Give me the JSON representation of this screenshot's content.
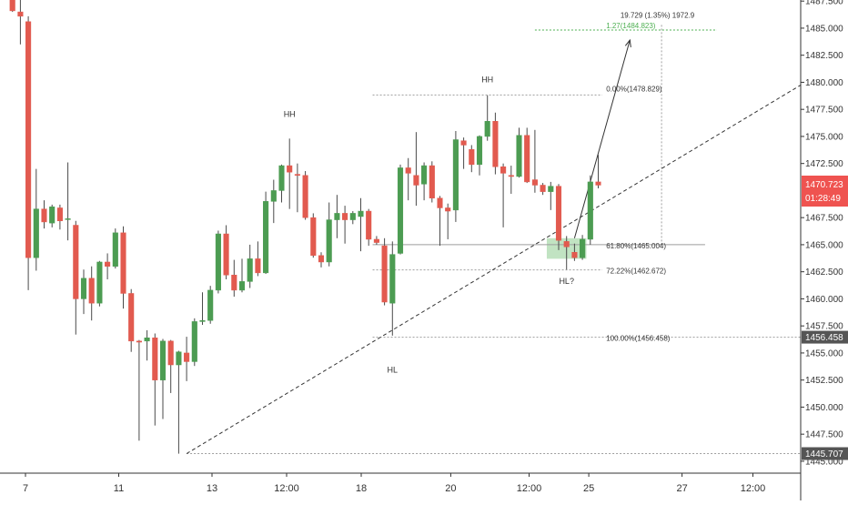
{
  "chart_data": {
    "type": "candlestick",
    "instrument_price_label": "1470.723",
    "countdown_label": "01:28:49",
    "colors": {
      "up": "#4c9c52",
      "down": "#e25a4f",
      "wick": "#4a4a4a",
      "price_tag": "#ef5350",
      "level_tag": "#555555",
      "target": "#4caf50",
      "entry_zone": "rgba(76,175,80,0.35)"
    },
    "y_axis": {
      "range": [
        1443.9,
        1487.6
      ],
      "ticks": [
        "1485.000",
        "1482.500",
        "1480.000",
        "1477.500",
        "1475.000",
        "1472.500",
        "1467.500",
        "1465.000",
        "1462.500",
        "1460.000",
        "1457.500",
        "1455.000",
        "1452.500",
        "1450.000",
        "1447.500",
        "1445.000",
        "1487.500"
      ],
      "tick_values": [
        1485.0,
        1482.5,
        1480.0,
        1477.5,
        1475.0,
        1472.5,
        1467.5,
        1465.0,
        1462.5,
        1460.0,
        1457.5,
        1455.0,
        1452.5,
        1450.0,
        1447.5,
        1445.0,
        1487.5
      ]
    },
    "x_axis": {
      "range": [
        0,
        100
      ],
      "ticks": [
        "7",
        "11",
        "13",
        "12:00",
        "18",
        "20",
        "12:00",
        "25",
        "27",
        "12:00"
      ],
      "tick_positions": [
        0,
        12.5,
        25,
        35,
        45,
        57,
        67.5,
        75.5,
        88,
        97.5
      ]
    },
    "candles": [
      {
        "x": 1,
        "o": 1487.8,
        "h": 1488.0,
        "l": 1486.5,
        "c": 1486.6
      },
      {
        "x": 2,
        "o": 1486.5,
        "h": 1487.6,
        "l": 1483.5,
        "c": 1486.1
      },
      {
        "x": 3,
        "o": 1485.6,
        "h": 1486.1,
        "l": 1460.8,
        "c": 1463.8
      },
      {
        "x": 4,
        "o": 1463.8,
        "h": 1472.0,
        "l": 1462.6,
        "c": 1468.3
      },
      {
        "x": 5,
        "o": 1468.3,
        "h": 1469.1,
        "l": 1466.5,
        "c": 1467.1
      },
      {
        "x": 6,
        "o": 1467.0,
        "h": 1468.7,
        "l": 1466.6,
        "c": 1468.5
      },
      {
        "x": 7,
        "o": 1468.4,
        "h": 1468.7,
        "l": 1466.4,
        "c": 1467.2
      },
      {
        "x": 8,
        "o": 1467.4,
        "h": 1472.6,
        "l": 1465.4,
        "c": 1467.4
      },
      {
        "x": 9,
        "o": 1466.8,
        "h": 1467.2,
        "l": 1456.7,
        "c": 1460.0
      },
      {
        "x": 10,
        "o": 1460.0,
        "h": 1462.7,
        "l": 1458.6,
        "c": 1461.9
      },
      {
        "x": 11,
        "o": 1461.9,
        "h": 1463.0,
        "l": 1458.0,
        "c": 1459.6
      },
      {
        "x": 12,
        "o": 1459.6,
        "h": 1463.5,
        "l": 1459.3,
        "c": 1463.4
      },
      {
        "x": 13,
        "o": 1463.4,
        "h": 1464.2,
        "l": 1461.8,
        "c": 1463.0
      },
      {
        "x": 14,
        "o": 1463.0,
        "h": 1466.5,
        "l": 1462.8,
        "c": 1466.1
      },
      {
        "x": 15,
        "o": 1466.1,
        "h": 1466.7,
        "l": 1459.1,
        "c": 1460.5
      },
      {
        "x": 16,
        "o": 1460.5,
        "h": 1460.9,
        "l": 1455.1,
        "c": 1456.1
      },
      {
        "x": 17,
        "o": 1456.1,
        "h": 1456.2,
        "l": 1446.9,
        "c": 1456.0
      },
      {
        "x": 18,
        "o": 1456.1,
        "h": 1457.1,
        "l": 1454.3,
        "c": 1456.4
      },
      {
        "x": 19,
        "o": 1456.4,
        "h": 1456.8,
        "l": 1448.3,
        "c": 1452.5
      },
      {
        "x": 20,
        "o": 1452.5,
        "h": 1456.3,
        "l": 1448.9,
        "c": 1456.1
      },
      {
        "x": 21,
        "o": 1456.1,
        "h": 1456.2,
        "l": 1451.3,
        "c": 1453.9
      },
      {
        "x": 22,
        "o": 1453.9,
        "h": 1455.2,
        "l": 1445.7,
        "c": 1455.1
      },
      {
        "x": 23,
        "o": 1455.0,
        "h": 1456.5,
        "l": 1452.4,
        "c": 1454.2
      },
      {
        "x": 24,
        "o": 1454.2,
        "h": 1458.2,
        "l": 1453.8,
        "c": 1457.9
      },
      {
        "x": 25,
        "o": 1457.9,
        "h": 1460.6,
        "l": 1457.6,
        "c": 1458.0
      },
      {
        "x": 26,
        "o": 1458.0,
        "h": 1461.2,
        "l": 1457.7,
        "c": 1460.8
      },
      {
        "x": 27,
        "o": 1460.8,
        "h": 1466.3,
        "l": 1460.5,
        "c": 1466.0
      },
      {
        "x": 28,
        "o": 1466.0,
        "h": 1466.8,
        "l": 1461.8,
        "c": 1462.2
      },
      {
        "x": 29,
        "o": 1462.2,
        "h": 1463.6,
        "l": 1460.2,
        "c": 1460.8
      },
      {
        "x": 30,
        "o": 1460.8,
        "h": 1463.7,
        "l": 1460.6,
        "c": 1461.6
      },
      {
        "x": 31,
        "o": 1461.6,
        "h": 1465.0,
        "l": 1461.0,
        "c": 1463.7
      },
      {
        "x": 32,
        "o": 1463.7,
        "h": 1465.3,
        "l": 1462.1,
        "c": 1462.4
      },
      {
        "x": 33,
        "o": 1462.4,
        "h": 1469.9,
        "l": 1462.3,
        "c": 1469.0
      },
      {
        "x": 34,
        "o": 1469.0,
        "h": 1471.0,
        "l": 1467.0,
        "c": 1470.0
      },
      {
        "x": 35,
        "o": 1470.0,
        "h": 1472.4,
        "l": 1468.9,
        "c": 1472.3
      },
      {
        "x": 36,
        "o": 1472.3,
        "h": 1474.8,
        "l": 1468.3,
        "c": 1471.7
      },
      {
        "x": 37,
        "o": 1471.5,
        "h": 1472.5,
        "l": 1468.0,
        "c": 1471.4
      },
      {
        "x": 38,
        "o": 1471.4,
        "h": 1471.8,
        "l": 1467.3,
        "c": 1467.5
      },
      {
        "x": 39,
        "o": 1467.5,
        "h": 1467.9,
        "l": 1463.8,
        "c": 1464.0
      },
      {
        "x": 40,
        "o": 1464.0,
        "h": 1464.3,
        "l": 1462.9,
        "c": 1463.4
      },
      {
        "x": 41,
        "o": 1463.4,
        "h": 1468.9,
        "l": 1463.0,
        "c": 1467.3
      },
      {
        "x": 42,
        "o": 1467.3,
        "h": 1469.6,
        "l": 1465.6,
        "c": 1467.9
      },
      {
        "x": 43,
        "o": 1467.9,
        "h": 1468.6,
        "l": 1465.1,
        "c": 1467.3
      },
      {
        "x": 44,
        "o": 1467.3,
        "h": 1468.1,
        "l": 1466.9,
        "c": 1467.9
      },
      {
        "x": 45,
        "o": 1467.6,
        "h": 1469.3,
        "l": 1464.4,
        "c": 1468.1
      },
      {
        "x": 46,
        "o": 1468.1,
        "h": 1468.3,
        "l": 1464.9,
        "c": 1465.5
      },
      {
        "x": 47,
        "o": 1465.5,
        "h": 1465.8,
        "l": 1465.0,
        "c": 1465.2
      },
      {
        "x": 48,
        "o": 1464.9,
        "h": 1465.6,
        "l": 1459.4,
        "c": 1459.7
      },
      {
        "x": 49,
        "o": 1459.6,
        "h": 1465.3,
        "l": 1456.6,
        "c": 1464.1
      },
      {
        "x": 50,
        "o": 1464.2,
        "h": 1472.4,
        "l": 1464.1,
        "c": 1472.1
      },
      {
        "x": 51,
        "o": 1472.1,
        "h": 1473.0,
        "l": 1469.1,
        "c": 1471.6
      },
      {
        "x": 52,
        "o": 1471.4,
        "h": 1475.4,
        "l": 1468.6,
        "c": 1470.5
      },
      {
        "x": 53,
        "o": 1470.6,
        "h": 1472.6,
        "l": 1469.1,
        "c": 1472.3
      },
      {
        "x": 54,
        "o": 1472.3,
        "h": 1472.7,
        "l": 1468.9,
        "c": 1469.3
      },
      {
        "x": 55,
        "o": 1469.3,
        "h": 1469.5,
        "l": 1464.9,
        "c": 1468.4
      },
      {
        "x": 56,
        "o": 1468.4,
        "h": 1468.8,
        "l": 1465.5,
        "c": 1468.1
      },
      {
        "x": 57,
        "o": 1468.2,
        "h": 1475.5,
        "l": 1467.1,
        "c": 1474.7
      },
      {
        "x": 58,
        "o": 1474.6,
        "h": 1474.9,
        "l": 1472.0,
        "c": 1474.2
      },
      {
        "x": 59,
        "o": 1473.8,
        "h": 1474.2,
        "l": 1471.7,
        "c": 1472.4
      },
      {
        "x": 60,
        "o": 1472.4,
        "h": 1475.1,
        "l": 1471.4,
        "c": 1475.0
      },
      {
        "x": 61,
        "o": 1475.0,
        "h": 1478.8,
        "l": 1474.6,
        "c": 1476.4
      },
      {
        "x": 62,
        "o": 1476.4,
        "h": 1477.2,
        "l": 1471.5,
        "c": 1472.2
      },
      {
        "x": 63,
        "o": 1472.2,
        "h": 1472.5,
        "l": 1466.6,
        "c": 1471.6
      },
      {
        "x": 64,
        "o": 1471.4,
        "h": 1472.3,
        "l": 1469.7,
        "c": 1471.3
      },
      {
        "x": 65,
        "o": 1471.3,
        "h": 1475.8,
        "l": 1471.2,
        "c": 1475.1
      },
      {
        "x": 66,
        "o": 1475.1,
        "h": 1475.8,
        "l": 1470.7,
        "c": 1470.8
      },
      {
        "x": 67,
        "o": 1471.0,
        "h": 1475.6,
        "l": 1469.8,
        "c": 1470.5
      },
      {
        "x": 68,
        "o": 1470.5,
        "h": 1470.7,
        "l": 1469.6,
        "c": 1469.9
      },
      {
        "x": 69,
        "o": 1469.9,
        "h": 1470.8,
        "l": 1468.2,
        "c": 1470.4
      },
      {
        "x": 70,
        "o": 1470.4,
        "h": 1470.6,
        "l": 1464.5,
        "c": 1465.4
      },
      {
        "x": 71,
        "o": 1465.3,
        "h": 1465.8,
        "l": 1462.7,
        "c": 1464.8
      },
      {
        "x": 72,
        "o": 1464.3,
        "h": 1465.1,
        "l": 1463.5,
        "c": 1463.8
      },
      {
        "x": 73,
        "o": 1463.8,
        "h": 1465.9,
        "l": 1463.6,
        "c": 1465.5
      },
      {
        "x": 74,
        "o": 1465.5,
        "h": 1471.4,
        "l": 1465.0,
        "c": 1470.8
      },
      {
        "x": 75,
        "o": 1470.8,
        "h": 1473.3,
        "l": 1470.2,
        "c": 1470.5
      }
    ],
    "fibonacci": {
      "levels": [
        {
          "label": "0.00%(1478.829)",
          "price": 1478.829
        },
        {
          "label": "61.80%(1465.004)",
          "price": 1465.004
        },
        {
          "label": "72.22%(1462.672)",
          "price": 1462.672
        },
        {
          "label": "100.00%(1456.458)",
          "price": 1456.458
        },
        {
          "label": "1.27(1484.823)",
          "price": 1484.823
        }
      ]
    },
    "annotations": [
      {
        "text": "HH",
        "x": 36,
        "price": 1476.8
      },
      {
        "text": "HH",
        "x": 61,
        "price": 1480.0
      },
      {
        "text": "HL",
        "x": 49,
        "price": 1453.2
      },
      {
        "text": "HL?",
        "x": 71,
        "price": 1461.4
      }
    ],
    "measure": {
      "label": "19.729 (1.35%) 1972.9",
      "price_top": 1485.3,
      "price_bottom": 1465.004
    },
    "axis_level_tags": [
      {
        "label": "1456.458",
        "price": 1456.458
      },
      {
        "label": "1445.707",
        "price": 1445.707
      }
    ],
    "trendline": {
      "x1": 23,
      "p1": 1445.707,
      "x2": 108,
      "p2": 1483.0
    },
    "forecast_arrow": {
      "x1": 72,
      "p1": 1465.6,
      "x2": 79,
      "p2": 1483.9
    },
    "entry_zone": {
      "x1": 68.5,
      "x2": 73.5,
      "p1": 1463.7,
      "p2": 1465.6
    }
  }
}
